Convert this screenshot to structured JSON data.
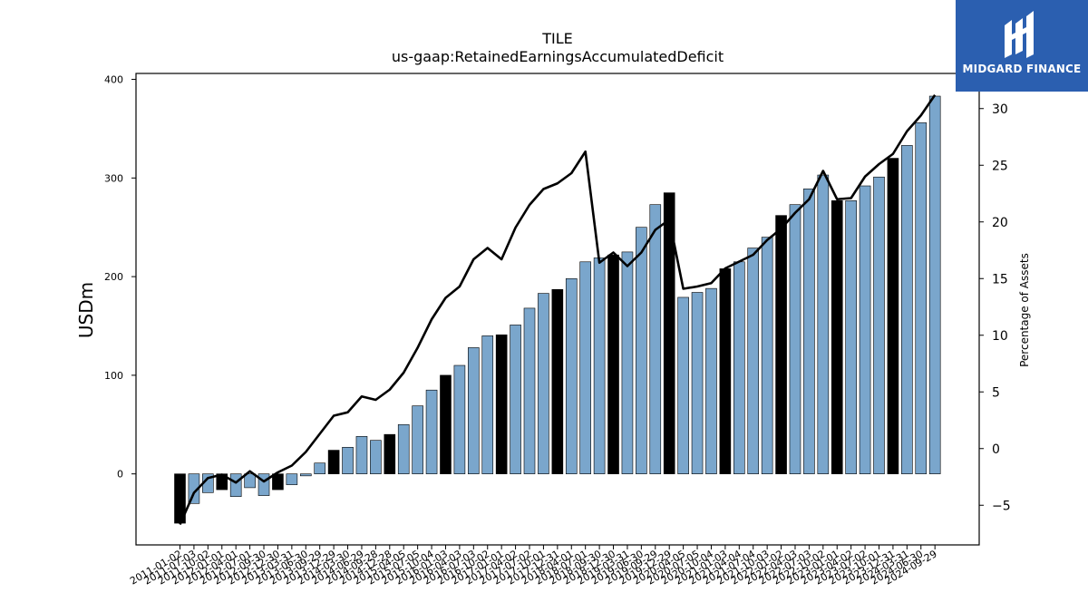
{
  "header": {
    "title": "TILE",
    "subtitle": "us-gaap:RetainedEarningsAccumulatedDeficit"
  },
  "logo": {
    "brand": "MIDGARD FINANCE"
  },
  "colors": {
    "bar_light": "#7aa6cc",
    "bar_dark": "#000000",
    "line": "#000000",
    "logo_bg": "#2b5fb0"
  },
  "chart_data": {
    "type": "bar",
    "ylabel": "USDm",
    "y2label": "Percentage of Assets",
    "ylim": [
      -72,
      406
    ],
    "y2lim": [
      -8.5,
      33.1
    ],
    "yticks": [
      0,
      100,
      200,
      300,
      400
    ],
    "y2ticks": [
      -5,
      0,
      5,
      10,
      15,
      20,
      25,
      30
    ],
    "categories": [
      "2011-01-02",
      "2011-07-03",
      "2011-10-02",
      "2012-01-01",
      "2012-04-01",
      "2012-07-01",
      "2012-09-30",
      "2012-12-30",
      "2013-03-31",
      "2013-06-30",
      "2013-09-29",
      "2013-12-29",
      "2014-03-30",
      "2014-06-29",
      "2014-09-28",
      "2014-12-28",
      "2015-04-05",
      "2015-07-05",
      "2015-10-04",
      "2016-01-03",
      "2016-04-03",
      "2016-07-03",
      "2016-10-02",
      "2017-01-01",
      "2017-04-02",
      "2017-07-02",
      "2017-10-01",
      "2017-12-31",
      "2018-04-01",
      "2018-07-01",
      "2018-09-30",
      "2018-12-30",
      "2019-03-31",
      "2019-06-30",
      "2019-09-29",
      "2019-12-29",
      "2020-04-05",
      "2020-07-05",
      "2020-10-04",
      "2021-01-03",
      "2021-04-04",
      "2021-07-04",
      "2021-10-03",
      "2022-01-02",
      "2022-04-03",
      "2022-07-03",
      "2022-10-02",
      "2023-01-01",
      "2023-04-02",
      "2023-07-02",
      "2023-10-01",
      "2023-12-31",
      "2024-03-31",
      "2024-06-30",
      "2024-09-29"
    ],
    "series": [
      {
        "type": "bar",
        "values": [
          -50,
          -30,
          -19,
          -16,
          -23,
          -14,
          -22,
          -16,
          -11,
          -2,
          11,
          24,
          27,
          38,
          34,
          40,
          50,
          69,
          85,
          100,
          110,
          128,
          140,
          141,
          151,
          168,
          183,
          187,
          198,
          215,
          219,
          222,
          225,
          250,
          273,
          285,
          179,
          184,
          188,
          208,
          215,
          229,
          240,
          262,
          273,
          289,
          303,
          277,
          277,
          292,
          301,
          320,
          333,
          356,
          383
        ],
        "highlight": [
          true,
          false,
          false,
          true,
          false,
          false,
          false,
          true,
          false,
          false,
          false,
          true,
          false,
          false,
          false,
          true,
          false,
          false,
          false,
          true,
          false,
          false,
          false,
          true,
          false,
          false,
          false,
          true,
          false,
          false,
          false,
          true,
          false,
          false,
          false,
          true,
          false,
          false,
          false,
          true,
          false,
          false,
          false,
          true,
          false,
          false,
          false,
          true,
          false,
          false,
          false,
          true,
          false,
          false,
          false
        ]
      },
      {
        "type": "line",
        "axis": "right",
        "values": [
          -6.7,
          -3.9,
          -2.6,
          -2.3,
          -3.0,
          -2.0,
          -2.9,
          -2.1,
          -1.5,
          -0.3,
          1.3,
          2.9,
          3.2,
          4.6,
          4.3,
          5.2,
          6.7,
          8.9,
          11.4,
          13.3,
          14.3,
          16.7,
          17.7,
          16.7,
          19.5,
          21.5,
          22.9,
          23.4,
          24.3,
          26.2,
          16.4,
          17.3,
          16.1,
          17.3,
          19.3,
          20.2,
          14.1,
          14.3,
          14.6,
          15.9,
          16.5,
          17.1,
          18.4,
          19.4,
          20.8,
          22.0,
          24.5,
          22.0,
          22.1,
          24.0,
          25.1,
          26.0,
          28.0,
          29.4,
          31.2
        ]
      }
    ]
  }
}
